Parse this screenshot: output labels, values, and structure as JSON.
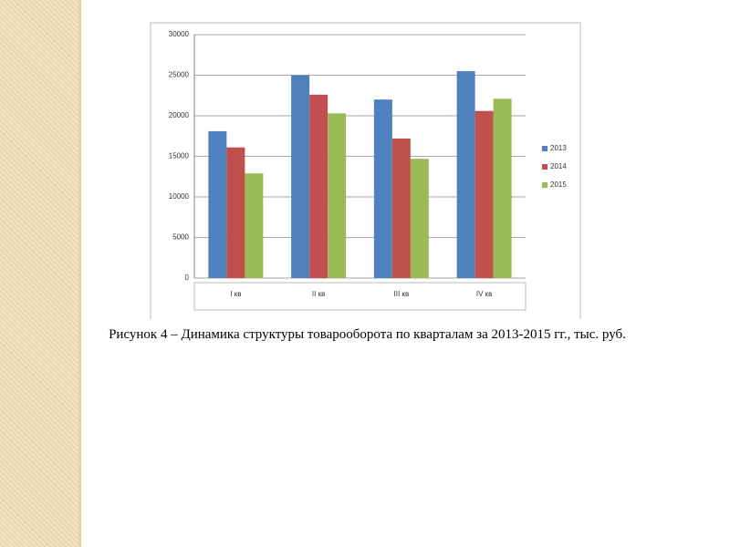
{
  "chart_data": {
    "type": "bar",
    "caption": "Рисунок 4 – Динамика структуры товарооборота по кварталам за 2013-2015 гг., тыс. руб.",
    "categories": [
      "I кв",
      "II кв",
      "III кв",
      "IV кв"
    ],
    "series": [
      {
        "name": "2013",
        "color": "#4f81bd",
        "values": [
          18100,
          25000,
          22000,
          25500
        ]
      },
      {
        "name": "2014",
        "color": "#c0504d",
        "values": [
          16100,
          22600,
          17200,
          20600
        ]
      },
      {
        "name": "2015",
        "color": "#9bbb59",
        "values": [
          12900,
          20300,
          14700,
          22100
        ]
      }
    ],
    "ylim": [
      0,
      30000
    ],
    "yticks": [
      0,
      5000,
      10000,
      15000,
      20000,
      25000,
      30000
    ],
    "grid": true,
    "legend": "right"
  }
}
